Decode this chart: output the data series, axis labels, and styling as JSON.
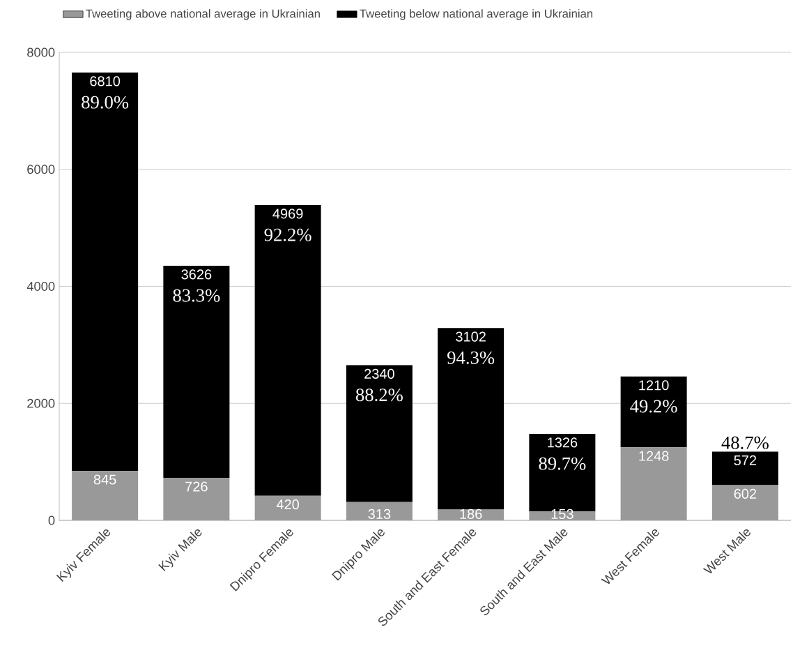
{
  "chart_data": {
    "type": "bar",
    "stacked": true,
    "categories": [
      "Kyiv Female",
      "Kyiv Male",
      "Dnipro Female",
      "Dnipro Male",
      "South and East Female",
      "South and East Male",
      "West Female",
      "West Male"
    ],
    "series": [
      {
        "name": "Tweeting above national average in Ukrainian",
        "color": "#999999",
        "values": [
          845,
          726,
          420,
          313,
          186,
          153,
          1248,
          602
        ]
      },
      {
        "name": "Tweeting below national average in Ukrainian",
        "color": "#000000",
        "values": [
          6810,
          3626,
          4969,
          2340,
          3102,
          1326,
          1210,
          572
        ]
      }
    ],
    "ylim": [
      0,
      8000
    ],
    "yticks": [
      0,
      2000,
      4000,
      6000,
      8000
    ],
    "grid": "y",
    "legend": "top",
    "data_labels": true,
    "annotations": [
      "89.0%",
      "83.3%",
      "92.2%",
      "88.2%",
      "94.3%",
      "89.7%",
      "49.2%",
      "48.7%"
    ]
  }
}
